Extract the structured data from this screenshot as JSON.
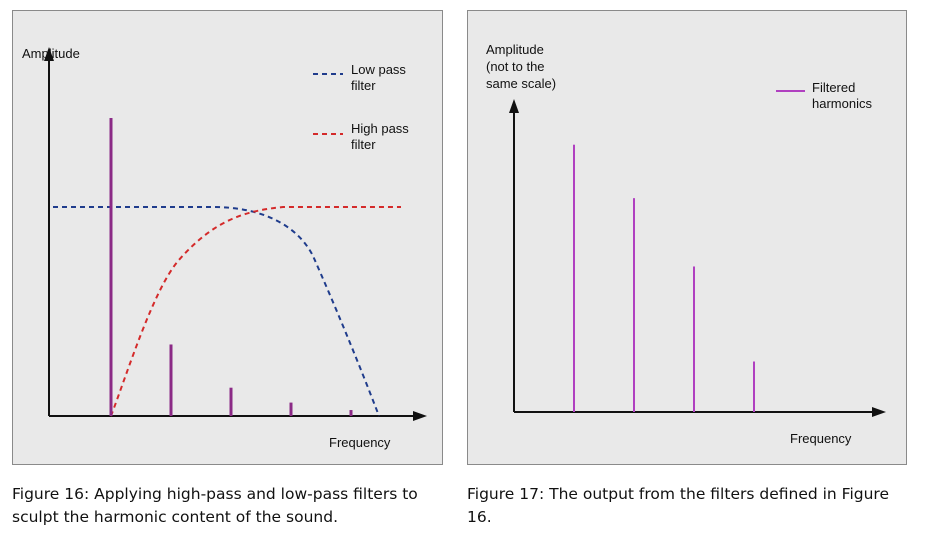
{
  "figure16": {
    "y_axis_label": "Amplitude",
    "x_axis_label": "Frequency",
    "legend": [
      {
        "line1": "Low pass",
        "line2": "filter",
        "color": "#1f3c8c",
        "style": "dashed"
      },
      {
        "line1": "High pass",
        "line2": "filter",
        "color": "#d42a2a",
        "style": "dashed"
      }
    ],
    "bar_color": "#8b2a86",
    "caption_line1": "Figure 16: Applying high-pass and low-pass filters to",
    "caption_line2": "sculpt the harmonic content of the sound."
  },
  "figure17": {
    "y_axis_label_line1": "Amplitude",
    "y_axis_label_line2": "(not to the",
    "y_axis_label_line3": "same scale)",
    "x_axis_label": "Frequency",
    "legend": [
      {
        "line1": "Filtered",
        "line2": "harmonics",
        "color": "#b040c0"
      }
    ],
    "caption": "Figure 17: The output from the filters defined in Figure 16."
  },
  "chart_data": [
    {
      "type": "bar",
      "x": [
        1,
        2,
        3,
        4,
        5
      ],
      "values": [
        1.0,
        0.24,
        0.095,
        0.045,
        0.02
      ],
      "xlabel": "Frequency",
      "ylabel": "Amplitude",
      "filters": [
        {
          "name": "Low pass filter",
          "shape": "flat then roll-off",
          "color": "#1f3c8c"
        },
        {
          "name": "High pass filter",
          "shape": "rise then flat",
          "color": "#d42a2a"
        }
      ]
    },
    {
      "type": "bar",
      "x": [
        2,
        3,
        4,
        5
      ],
      "values": [
        0.9,
        0.72,
        0.49,
        0.17
      ],
      "series": [
        {
          "name": "Filtered harmonics",
          "values": [
            0.9,
            0.72,
            0.49,
            0.17
          ]
        }
      ],
      "xlabel": "Frequency",
      "ylabel": "Amplitude (not to the same scale)"
    }
  ]
}
